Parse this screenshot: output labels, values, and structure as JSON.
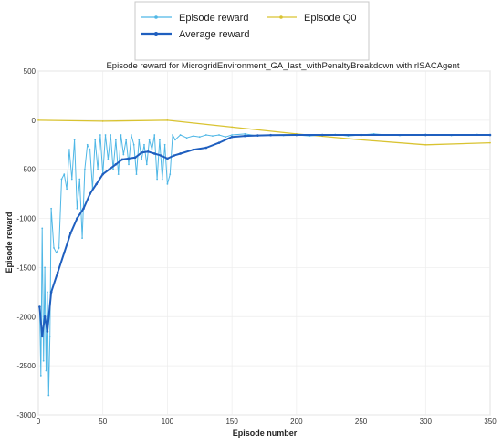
{
  "chart_data": {
    "type": "line",
    "title": "Episode reward for MicrogridEnvironment_GA_last_withPenaltyBreakdown with rlSACAgent",
    "xlabel": "Episode number",
    "ylabel": "Episode reward",
    "xlim": [
      0,
      350
    ],
    "ylim": [
      -3000,
      500
    ],
    "xticks": [
      0,
      50,
      100,
      150,
      200,
      250,
      300,
      350
    ],
    "yticks": [
      500,
      0,
      -500,
      -1000,
      -1500,
      -2000,
      -2500,
      -3000
    ],
    "grid": true,
    "legend_position": "top-center",
    "series": [
      {
        "name": "Episode reward",
        "color": "#4fb7e6",
        "x": [
          1,
          2,
          3,
          4,
          5,
          6,
          7,
          8,
          9,
          10,
          12,
          14,
          16,
          18,
          20,
          22,
          24,
          26,
          28,
          30,
          32,
          34,
          36,
          38,
          40,
          42,
          44,
          46,
          48,
          50,
          52,
          54,
          56,
          58,
          60,
          62,
          64,
          66,
          68,
          70,
          72,
          74,
          76,
          78,
          80,
          82,
          84,
          86,
          88,
          90,
          92,
          94,
          96,
          98,
          100,
          102,
          104,
          106,
          110,
          115,
          120,
          125,
          130,
          135,
          140,
          145,
          150,
          160,
          170,
          180,
          190,
          200,
          210,
          220,
          230,
          240,
          250,
          260,
          270,
          280,
          290,
          300,
          310,
          320,
          330,
          340,
          350
        ],
        "y": [
          -1900,
          -2600,
          -1100,
          -2450,
          -1500,
          -2550,
          -1750,
          -2800,
          -2200,
          -900,
          -1300,
          -1350,
          -1300,
          -600,
          -550,
          -700,
          -300,
          -600,
          -200,
          -900,
          -600,
          -1200,
          -500,
          -250,
          -300,
          -700,
          -200,
          -500,
          -150,
          -550,
          -150,
          -400,
          -150,
          -500,
          -200,
          -550,
          -150,
          -350,
          -200,
          -450,
          -150,
          -250,
          -550,
          -200,
          -400,
          -250,
          -450,
          -200,
          -300,
          -150,
          -600,
          -200,
          -600,
          -250,
          -650,
          -550,
          -150,
          -200,
          -150,
          -180,
          -160,
          -170,
          -150,
          -160,
          -150,
          -170,
          -150,
          -140,
          -160,
          -150,
          -155,
          -150,
          -160,
          -150,
          -145,
          -160,
          -150,
          -140,
          -150,
          -155,
          -150,
          -145,
          -150,
          -155,
          -150,
          -145,
          -150
        ]
      },
      {
        "name": "Average reward",
        "color": "#1f5fbf",
        "x": [
          1,
          3,
          5,
          7,
          10,
          15,
          20,
          25,
          30,
          35,
          40,
          45,
          50,
          55,
          60,
          65,
          70,
          75,
          80,
          85,
          90,
          95,
          100,
          105,
          110,
          120,
          130,
          140,
          150,
          160,
          170,
          180,
          200,
          220,
          250,
          300,
          350
        ],
        "y": [
          -1900,
          -2200,
          -2000,
          -2150,
          -1750,
          -1550,
          -1350,
          -1150,
          -1000,
          -900,
          -750,
          -650,
          -550,
          -500,
          -450,
          -400,
          -390,
          -380,
          -330,
          -320,
          -340,
          -360,
          -390,
          -360,
          -340,
          -300,
          -280,
          -230,
          -170,
          -160,
          -155,
          -152,
          -150,
          -150,
          -150,
          -150,
          -150
        ]
      },
      {
        "name": "Episode Q0",
        "color": "#d9c331",
        "x": [
          0,
          50,
          100,
          150,
          200,
          250,
          300,
          350
        ],
        "y": [
          0,
          -10,
          0,
          -70,
          -140,
          -200,
          -250,
          -230
        ]
      }
    ]
  }
}
